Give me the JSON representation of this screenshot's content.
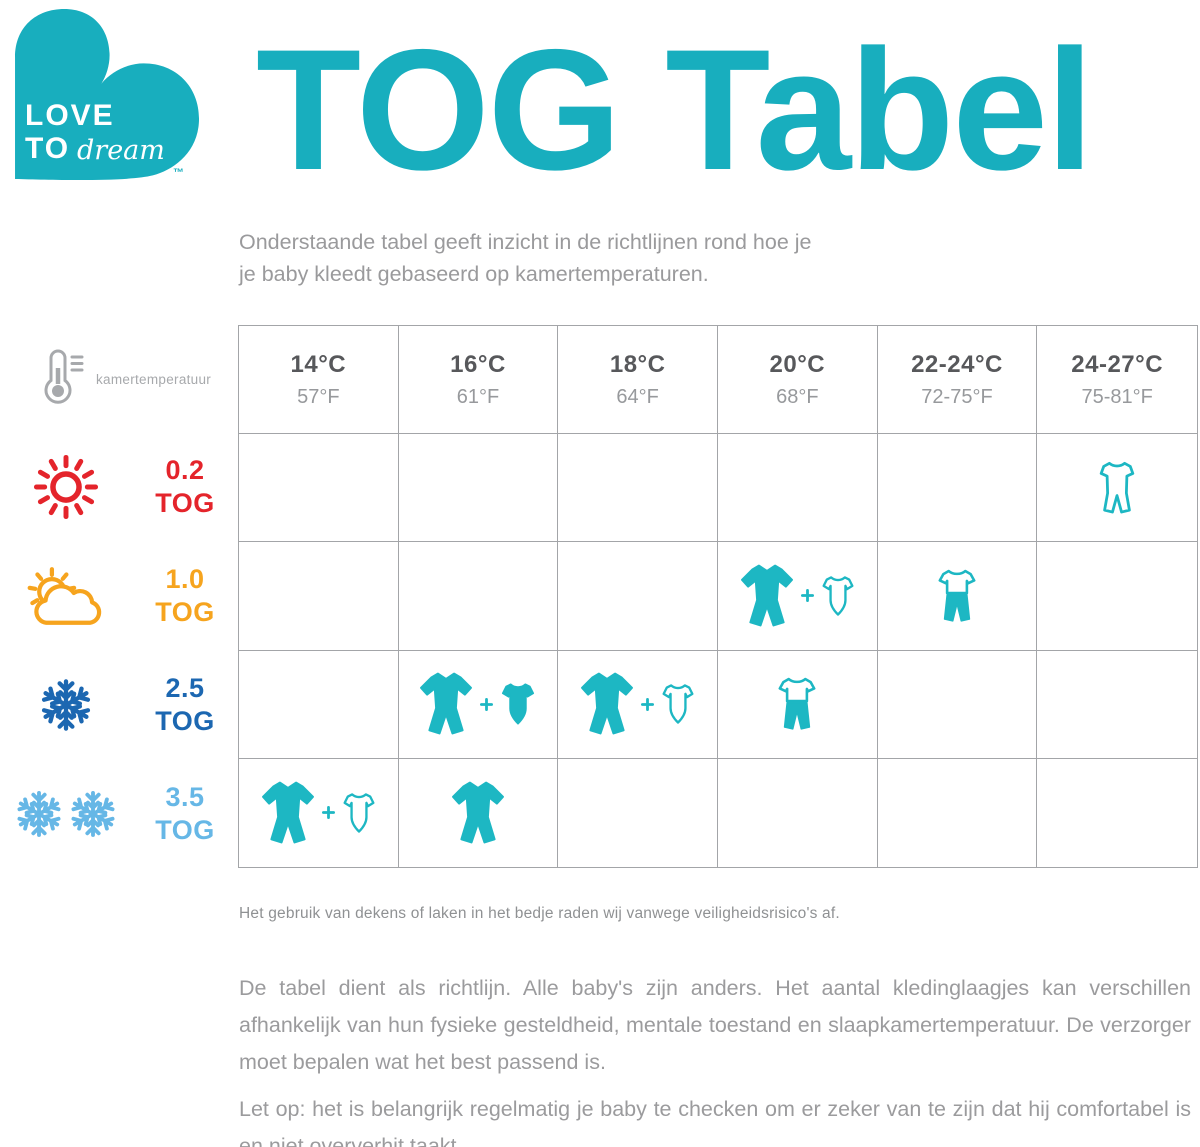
{
  "colors": {
    "accent_teal": "#18aebe",
    "garment_teal": "#1db7c3",
    "red": "#e4242b",
    "orange": "#f6a41e",
    "dark_blue": "#1c67b1",
    "light_blue": "#66b7e6",
    "gray_icon": "#a7a9ac",
    "grid_gray": "#a3a5a8"
  },
  "brand": {
    "love": "LOVE",
    "to": "TO",
    "dream": "dream",
    "tm": "™"
  },
  "title": "TOG Tabel",
  "subtitle": {
    "line1": "Onderstaande tabel geeft inzicht in de richtlijnen rond hoe je",
    "line2": "je baby kleedt gebaseerd op kamertemperaturen."
  },
  "table": {
    "temperature_label": "kamertemperatuur",
    "columns": [
      {
        "celsius": "14°C",
        "fahrenheit": "57°F"
      },
      {
        "celsius": "16°C",
        "fahrenheit": "61°F"
      },
      {
        "celsius": "18°C",
        "fahrenheit": "64°F"
      },
      {
        "celsius": "20°C",
        "fahrenheit": "68°F"
      },
      {
        "celsius": "22-24°C",
        "fahrenheit": "72-75°F"
      },
      {
        "celsius": "24-27°C",
        "fahrenheit": "75-81°F"
      }
    ],
    "rows": [
      {
        "tog": "0.2",
        "unit": "TOG",
        "color": "#e4242b",
        "weather": [
          "sun"
        ],
        "cells": [
          [],
          [],
          [],
          [],
          [],
          [
            "romper-outline"
          ]
        ]
      },
      {
        "tog": "1.0",
        "unit": "TOG",
        "color": "#f6a41e",
        "weather": [
          "sun-cloud"
        ],
        "cells": [
          [],
          [],
          [],
          [
            "suit-filled",
            "plus",
            "bodysuit-outline"
          ],
          [
            "top-pants"
          ],
          []
        ]
      },
      {
        "tog": "2.5",
        "unit": "TOG",
        "color": "#1c67b1",
        "weather": [
          "snowflake"
        ],
        "cells": [
          [],
          [
            "suit-filled",
            "plus",
            "bodysuit-filled"
          ],
          [
            "suit-filled",
            "plus",
            "bodysuit-outline"
          ],
          [
            "top-pants"
          ],
          [],
          []
        ]
      },
      {
        "tog": "3.5",
        "unit": "TOG",
        "color": "#66b7e6",
        "weather": [
          "snowflake",
          "snowflake"
        ],
        "cells": [
          [
            "suit-filled",
            "plus",
            "bodysuit-outline"
          ],
          [
            "suit-filled"
          ],
          [],
          [],
          [],
          []
        ]
      }
    ]
  },
  "footnote": "Het gebruik van dekens of laken in het bedje raden wij vanwege veiligheidsrisico's af.",
  "paragraphs": {
    "p1": "De tabel dient als richtlijn. Alle baby's zijn anders. Het aantal kledinglaagjes kan verschillen afhankelijk van hun fysieke gesteldheid, mentale toestand en slaapkamertemperatuur. De verzorger moet bepalen wat het best passend is.",
    "p2": "Let op: het is belangrijk regelmatig je baby te checken om er zeker van te zijn dat hij comfortabel is en niet oververhit taakt."
  }
}
